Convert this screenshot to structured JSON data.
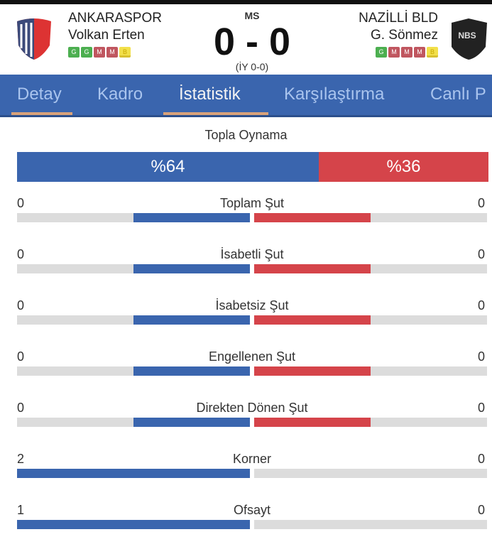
{
  "header": {
    "home": {
      "name": "ANKARASPOR",
      "coach": "Volkan Erten",
      "form": [
        "G",
        "G",
        "M",
        "M",
        "B"
      ]
    },
    "away": {
      "name": "NAZİLLİ BLD",
      "coach": "G. Sönmez",
      "form": [
        "G",
        "M",
        "M",
        "M",
        "B"
      ],
      "logo_text": "NBS"
    },
    "status": "MS",
    "score": "0 - 0",
    "half_time": "(İY 0-0)"
  },
  "tabs": [
    {
      "label": "Detay"
    },
    {
      "label": "Kadro"
    },
    {
      "label": "İstatistik",
      "active": true
    },
    {
      "label": "Karşılaştırma"
    },
    {
      "label": "Canlı P"
    }
  ],
  "possession": {
    "title": "Topla Oynama",
    "home": "%64",
    "away": "%36",
    "home_pct": 64,
    "away_pct": 36
  },
  "stats": [
    {
      "label": "Toplam Şut",
      "home": "0",
      "away": "0"
    },
    {
      "label": "İsabetli Şut",
      "home": "0",
      "away": "0"
    },
    {
      "label": "İsabetsiz Şut",
      "home": "0",
      "away": "0"
    },
    {
      "label": "Engellenen Şut",
      "home": "0",
      "away": "0"
    },
    {
      "label": "Direkten Dönen Şut",
      "home": "0",
      "away": "0"
    },
    {
      "label": "Korner",
      "home": "2",
      "away": "0"
    },
    {
      "label": "Ofsayt",
      "home": "1",
      "away": "0"
    }
  ],
  "colors": {
    "home": "#3a65ae",
    "away": "#d5444a",
    "track": "#dcdcdc",
    "tabbar": "#3a65ae"
  }
}
